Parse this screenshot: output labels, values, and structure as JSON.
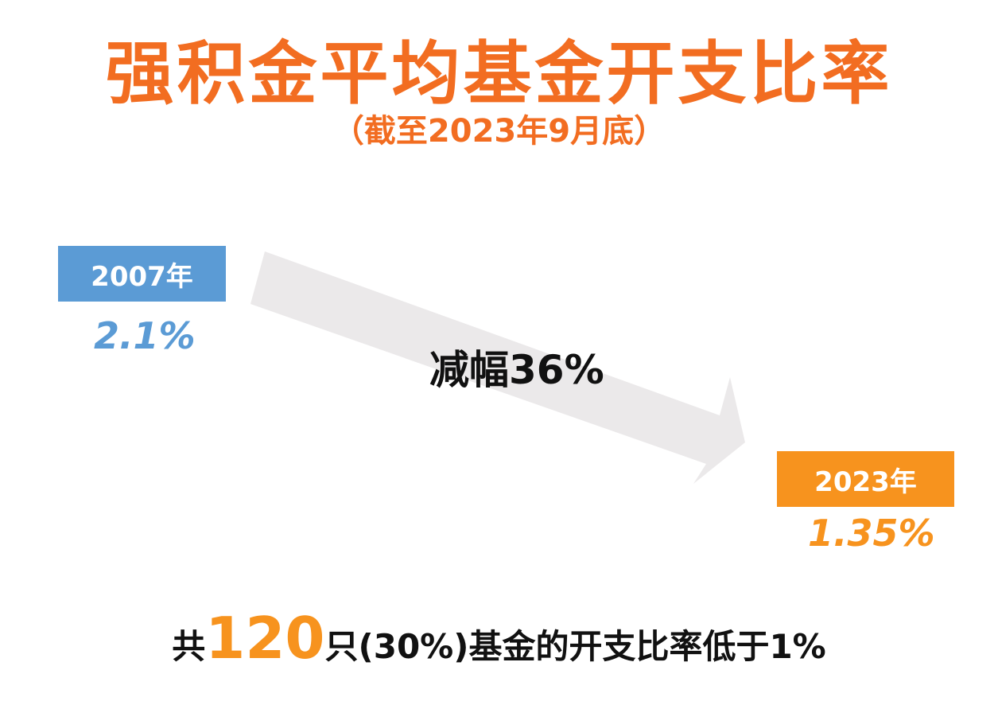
{
  "header": {
    "title": "强积金平均基金开支比率",
    "subtitle": "（截至2023年9月底）"
  },
  "start": {
    "year": "2007年",
    "value": "2.1%"
  },
  "change": "减幅36%",
  "end": {
    "year": "2023年",
    "value": "1.35%"
  },
  "footer": {
    "prefix": "共",
    "count": "120",
    "suffix": "只(30%)基金的开支比率低于1%"
  }
}
